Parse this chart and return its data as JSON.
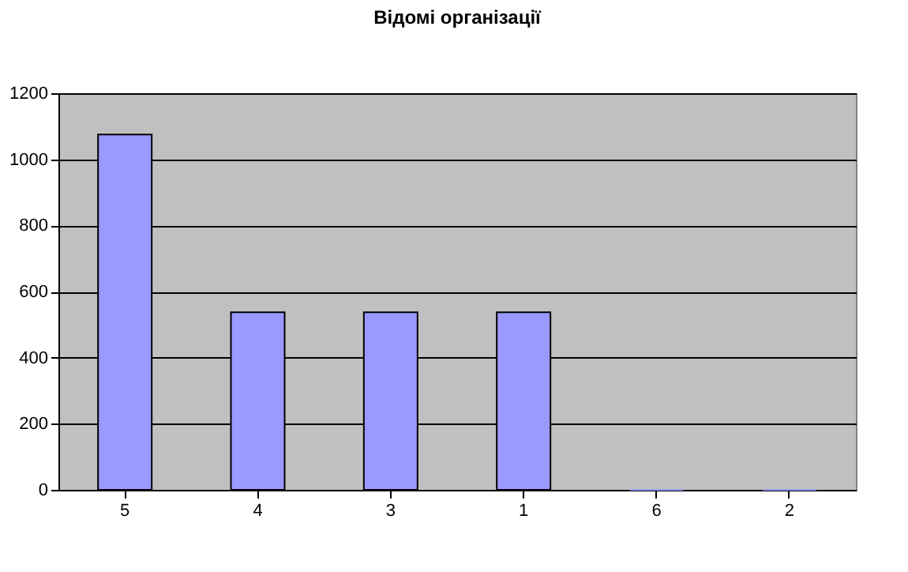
{
  "chart_data": {
    "type": "bar",
    "title": "Відомі організації",
    "categories": [
      "5",
      "4",
      "3",
      "1",
      "6",
      "2"
    ],
    "values": [
      1075,
      537,
      537,
      537,
      0,
      0
    ],
    "color": "#9999ff",
    "ylim": [
      0,
      1200
    ],
    "yticks": [
      0,
      200,
      400,
      600,
      800,
      1000,
      1200
    ],
    "grid": "y",
    "legend": false
  }
}
